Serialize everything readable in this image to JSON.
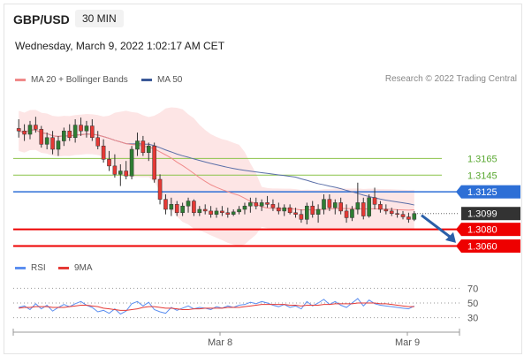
{
  "header": {
    "symbol": "GBP/USD",
    "timeframe": "30 MIN",
    "datetime": "Wednesday, March 9, 2022 1:02:17 AM CET"
  },
  "legend": {
    "ma20_label": "MA 20 + Bollinger Bands",
    "ma50_label": "MA 50",
    "rsi_label": "RSI",
    "ma9_label": "9MA"
  },
  "credit": "Research © 2022 Trading Central",
  "colors": {
    "bull": "#2e7d32",
    "bear": "#e53935",
    "ma20": "#f08a8a",
    "bands": "#fde0e0",
    "ma50": "#5b6fa8",
    "support": "#ee0000",
    "resistance": "#8bc34a",
    "pivot": "#2d6fd6",
    "current": "#333333",
    "rsi": "#5b8ef0",
    "rsi_ma": "#e53935"
  },
  "chart_data": [
    {
      "type": "line",
      "name": "GBP/USD 30 MIN",
      "x_ticks": [
        "Mar 8",
        "Mar 9"
      ],
      "candles": [
        [
          1.3201,
          1.3212,
          1.319,
          1.3198
        ],
        [
          1.3198,
          1.3206,
          1.3186,
          1.3194
        ],
        [
          1.3194,
          1.321,
          1.3188,
          1.3205
        ],
        [
          1.3205,
          1.3215,
          1.3196,
          1.32
        ],
        [
          1.32,
          1.3204,
          1.3178,
          1.3182
        ],
        [
          1.3182,
          1.3196,
          1.3176,
          1.319
        ],
        [
          1.319,
          1.3198,
          1.317,
          1.3176
        ],
        [
          1.3176,
          1.3192,
          1.3168,
          1.3186
        ],
        [
          1.3186,
          1.3202,
          1.318,
          1.3198
        ],
        [
          1.3198,
          1.3206,
          1.3186,
          1.319
        ],
        [
          1.319,
          1.3212,
          1.3184,
          1.3205
        ],
        [
          1.3205,
          1.3214,
          1.3192,
          1.3198
        ],
        [
          1.3198,
          1.321,
          1.319,
          1.3204
        ],
        [
          1.3204,
          1.3212,
          1.3186,
          1.319
        ],
        [
          1.319,
          1.3198,
          1.3176,
          1.318
        ],
        [
          1.318,
          1.3188,
          1.316,
          1.3164
        ],
        [
          1.3164,
          1.3174,
          1.315,
          1.3156
        ],
        [
          1.3156,
          1.317,
          1.3142,
          1.3146
        ],
        [
          1.3146,
          1.3158,
          1.3132,
          1.315
        ],
        [
          1.315,
          1.3162,
          1.314,
          1.3144
        ],
        [
          1.3144,
          1.318,
          1.314,
          1.3176
        ],
        [
          1.3176,
          1.3196,
          1.3168,
          1.3186
        ],
        [
          1.3186,
          1.3192,
          1.3168,
          1.3172
        ],
        [
          1.3172,
          1.3184,
          1.3162,
          1.318
        ],
        [
          1.318,
          1.3184,
          1.3136,
          1.314
        ],
        [
          1.314,
          1.3146,
          1.311,
          1.3116
        ],
        [
          1.3116,
          1.3122,
          1.3098,
          1.3104
        ],
        [
          1.3104,
          1.3118,
          1.3096,
          1.311
        ],
        [
          1.311,
          1.3114,
          1.3096,
          1.31
        ],
        [
          1.31,
          1.3112,
          1.3096,
          1.3108
        ],
        [
          1.3108,
          1.3118,
          1.31,
          1.3114
        ],
        [
          1.3114,
          1.3116,
          1.3096,
          1.31
        ],
        [
          1.31,
          1.3108,
          1.3096,
          1.3104
        ],
        [
          1.3104,
          1.311,
          1.3098,
          1.3102
        ],
        [
          1.3102,
          1.3108,
          1.3094,
          1.3098
        ],
        [
          1.3098,
          1.3106,
          1.3094,
          1.3102
        ],
        [
          1.3102,
          1.3108,
          1.3096,
          1.31
        ],
        [
          1.31,
          1.3106,
          1.3094,
          1.3098
        ],
        [
          1.3098,
          1.3104,
          1.3096,
          1.3101
        ],
        [
          1.3101,
          1.3108,
          1.3098,
          1.3104
        ],
        [
          1.3104,
          1.3112,
          1.3098,
          1.3108
        ],
        [
          1.3108,
          1.3118,
          1.31,
          1.3112
        ],
        [
          1.3112,
          1.3118,
          1.3104,
          1.3108
        ],
        [
          1.3108,
          1.3116,
          1.3102,
          1.3112
        ],
        [
          1.3112,
          1.312,
          1.3106,
          1.311
        ],
        [
          1.311,
          1.3116,
          1.3102,
          1.3106
        ],
        [
          1.3106,
          1.3112,
          1.3098,
          1.3102
        ],
        [
          1.3102,
          1.311,
          1.3096,
          1.3106
        ],
        [
          1.3106,
          1.311,
          1.3098,
          1.31
        ],
        [
          1.31,
          1.3106,
          1.3094,
          1.3098
        ],
        [
          1.3098,
          1.3104,
          1.3088,
          1.3092
        ],
        [
          1.3092,
          1.3112,
          1.3086,
          1.3108
        ],
        [
          1.3108,
          1.3114,
          1.3094,
          1.3098
        ],
        [
          1.3098,
          1.311,
          1.3088,
          1.3104
        ],
        [
          1.3104,
          1.3122,
          1.3098,
          1.3116
        ],
        [
          1.3116,
          1.3122,
          1.3102,
          1.3106
        ],
        [
          1.3106,
          1.3116,
          1.3098,
          1.3112
        ],
        [
          1.3112,
          1.3118,
          1.3098,
          1.3102
        ],
        [
          1.3102,
          1.311,
          1.3088,
          1.3094
        ],
        [
          1.3094,
          1.3108,
          1.309,
          1.3104
        ],
        [
          1.3104,
          1.3136,
          1.3098,
          1.3112
        ],
        [
          1.3112,
          1.3118,
          1.3092,
          1.3096
        ],
        [
          1.3096,
          1.3122,
          1.3094,
          1.3118
        ],
        [
          1.3118,
          1.313,
          1.3104,
          1.311
        ],
        [
          1.311,
          1.3114,
          1.31,
          1.3104
        ],
        [
          1.3104,
          1.311,
          1.3098,
          1.3102
        ],
        [
          1.3102,
          1.3106,
          1.3096,
          1.3099
        ],
        [
          1.3099,
          1.3104,
          1.3094,
          1.3098
        ],
        [
          1.3098,
          1.3102,
          1.3092,
          1.3095
        ],
        [
          1.3095,
          1.31,
          1.3088,
          1.3092
        ],
        [
          1.3092,
          1.3102,
          1.309,
          1.3099
        ]
      ],
      "levels": [
        {
          "label": "1.3165",
          "value": 1.3165,
          "kind": "resistance"
        },
        {
          "label": "1.3145",
          "value": 1.3145,
          "kind": "resistance"
        },
        {
          "label": "1.3125",
          "value": 1.3125,
          "kind": "pivot"
        },
        {
          "label": "1.3099",
          "value": 1.3099,
          "kind": "current"
        },
        {
          "label": "1.3080",
          "value": 1.308,
          "kind": "support"
        },
        {
          "label": "1.3060",
          "value": 1.306,
          "kind": "support"
        }
      ],
      "ylim": [
        1.305,
        1.323
      ]
    },
    {
      "type": "line",
      "name": "RSI",
      "y_ticks": [
        70,
        50,
        30
      ],
      "ylim": [
        20,
        80
      ],
      "rsi": [
        44,
        46,
        41,
        49,
        42,
        47,
        39,
        44,
        48,
        45,
        49,
        52,
        47,
        44,
        38,
        40,
        36,
        42,
        35,
        39,
        49,
        52,
        46,
        51,
        41,
        38,
        36,
        44,
        40,
        43,
        46,
        42,
        44,
        43,
        41,
        45,
        43,
        46,
        44,
        47,
        48,
        51,
        49,
        52,
        50,
        47,
        45,
        48,
        44,
        46,
        42,
        52,
        46,
        50,
        55,
        48,
        52,
        47,
        44,
        50,
        56,
        46,
        54,
        49,
        47,
        46,
        45,
        44,
        43,
        42,
        46
      ],
      "ma9": [
        43,
        44,
        44,
        45,
        45,
        45,
        44,
        44,
        44,
        45,
        46,
        47,
        47,
        46,
        45,
        43,
        42,
        41,
        40,
        40,
        41,
        42,
        44,
        45,
        45,
        44,
        43,
        43,
        42,
        41,
        41,
        42,
        42,
        43,
        43,
        43,
        43,
        44,
        44,
        44,
        45,
        46,
        47,
        48,
        48,
        48,
        48,
        48,
        47,
        47,
        46,
        47,
        47,
        47,
        48,
        48,
        49,
        49,
        49,
        49,
        50,
        50,
        50,
        50,
        49,
        49,
        48,
        47,
        46,
        45,
        45
      ]
    }
  ]
}
